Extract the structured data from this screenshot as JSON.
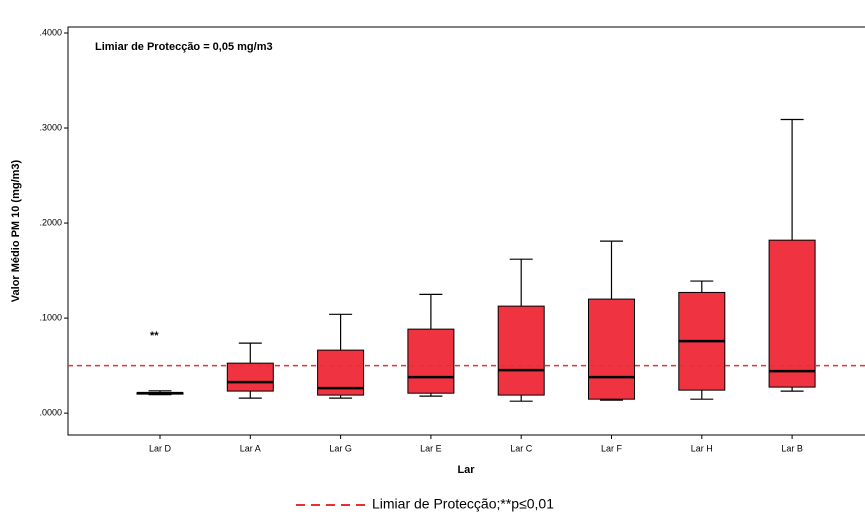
{
  "chart_data": {
    "type": "box",
    "x_label": "Lar",
    "y_label": "Valor Médio PM 10 (mg/m3)",
    "annotation": "Limiar de Protecção = 0,05 mg/m3",
    "significance": "**",
    "categories": [
      "Lar D",
      "Lar A",
      "Lar G",
      "Lar E",
      "Lar C",
      "Lar F",
      "Lar H",
      "Lar B"
    ],
    "min": [
      0.0195,
      0.0158,
      0.0158,
      0.0179,
      0.0126,
      0.0137,
      0.0147,
      0.0232
    ],
    "q1": [
      0.02,
      0.0232,
      0.019,
      0.021,
      0.019,
      0.0147,
      0.0242,
      0.0274
    ],
    "median": [
      0.021,
      0.0326,
      0.0263,
      0.0379,
      0.0453,
      0.0379,
      0.0758,
      0.0442
    ],
    "q3": [
      0.0215,
      0.0526,
      0.0663,
      0.0884,
      0.1126,
      0.12,
      0.127,
      0.182
    ],
    "max": [
      0.0235,
      0.0737,
      0.104,
      0.125,
      0.162,
      0.181,
      0.139,
      0.309
    ],
    "color": "#ef3340",
    "threshold": {
      "value": 0.05,
      "color": "#e8312f",
      "name": "Limiar de Protecção;**p≤0,01"
    },
    "ylim": [
      -0.023,
      0.4063
    ],
    "yticks": [
      {
        "value": 0,
        "label": ".0000"
      },
      {
        "value": 0.1,
        "label": ".1000"
      },
      {
        "value": 0.2,
        "label": ".2000"
      },
      {
        "value": 0.3,
        "label": ".3000"
      },
      {
        "value": 0.4,
        "label": ".4000"
      }
    ]
  }
}
